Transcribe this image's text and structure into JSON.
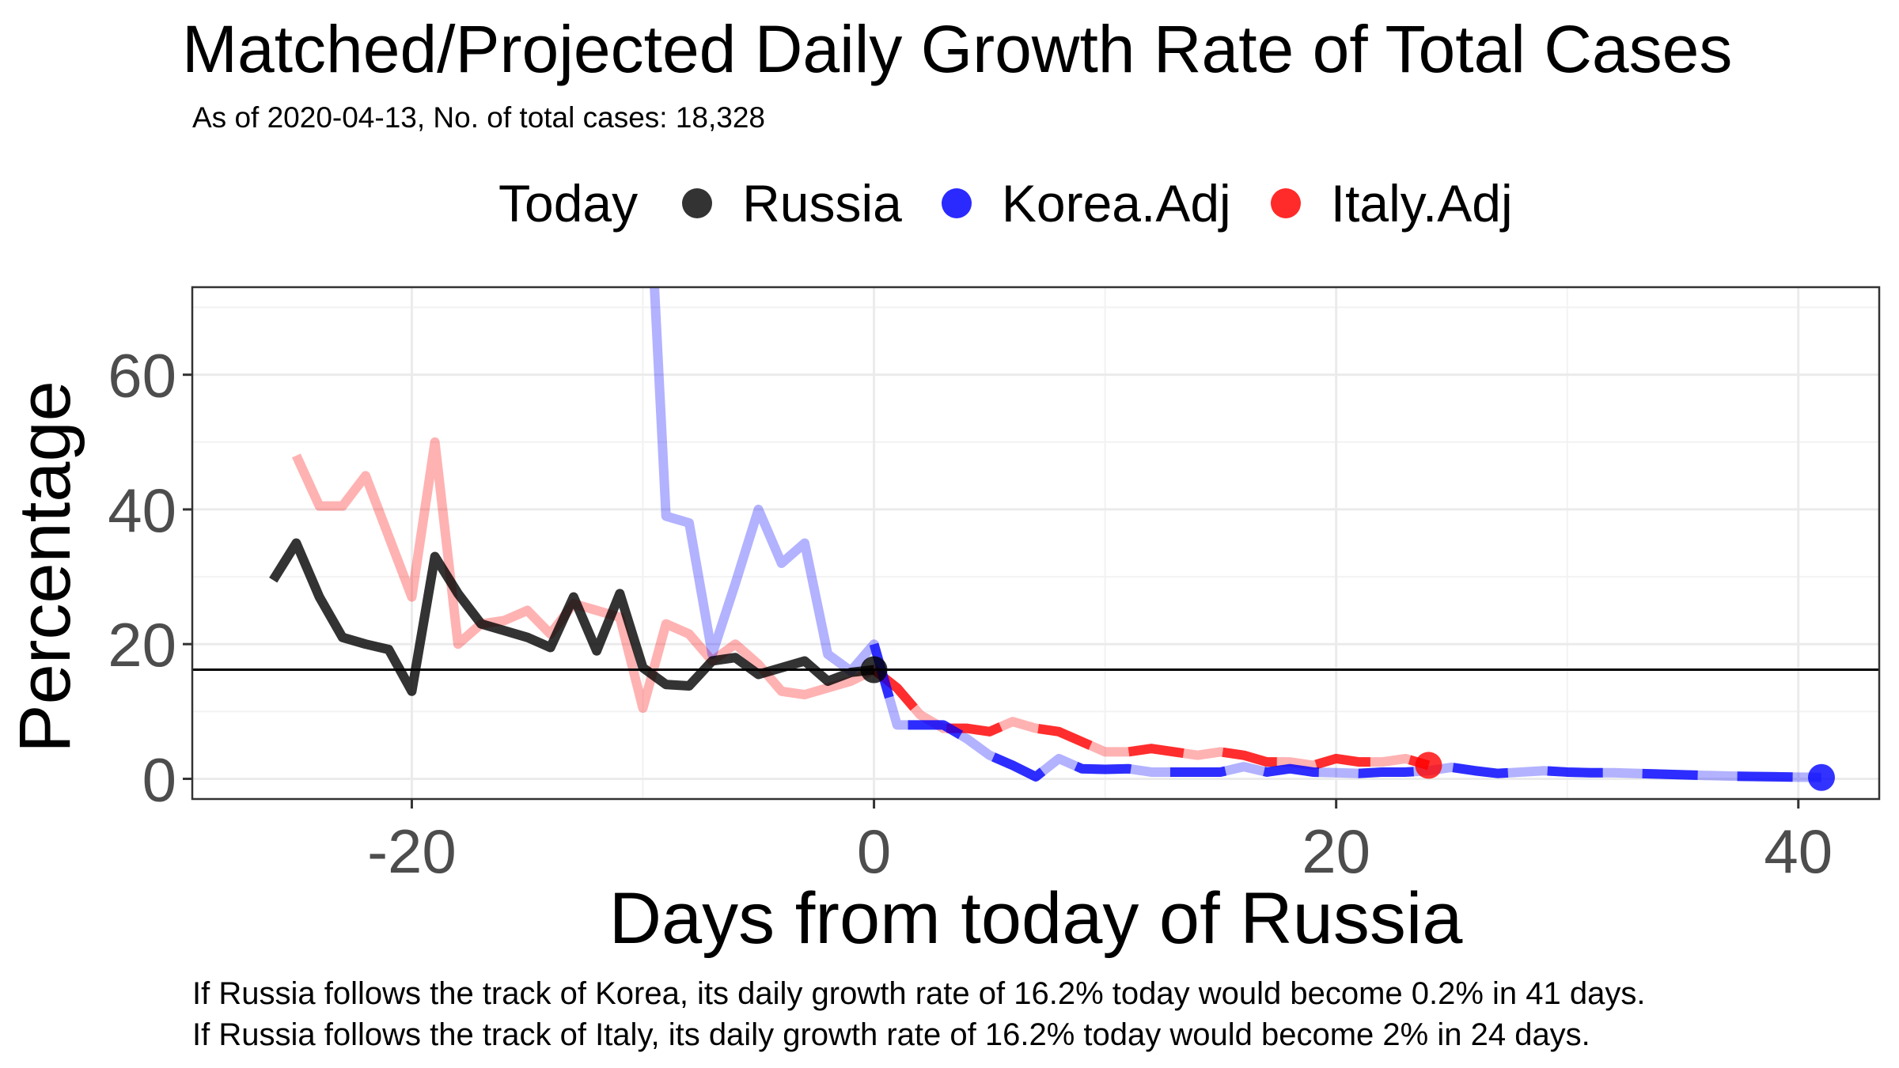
{
  "chart_data": {
    "type": "line",
    "title": "Matched/Projected Daily Growth Rate of Total Cases",
    "subtitle": "As of 2020-04-13, No. of total cases: 18,328",
    "xlabel": "Days from today of Russia",
    "ylabel": "Percentage",
    "xlim": [
      -29.5,
      43.5
    ],
    "ylim": [
      -3,
      73
    ],
    "xticks": [
      -20,
      0,
      20,
      40
    ],
    "yticks": [
      0,
      20,
      40,
      60
    ],
    "legend": {
      "title": "Today",
      "position": "top"
    },
    "grid": true,
    "hline": 16.2,
    "series": [
      {
        "name": "Russia",
        "color": "#000000",
        "x": [
          -26,
          -25,
          -24,
          -23,
          -22,
          -21,
          -20,
          -19,
          -18,
          -17,
          -16,
          -15,
          -14,
          -13,
          -12,
          -11,
          -10,
          -9,
          -8,
          -7,
          -6,
          -5,
          -4,
          -3,
          -2,
          -1,
          0
        ],
        "y": [
          29.5,
          35,
          27,
          21,
          20,
          19.2,
          13,
          33,
          27.5,
          23,
          22,
          21,
          19.5,
          27,
          19,
          27.5,
          16.5,
          14,
          13.8,
          17.5,
          18,
          15.5,
          16.5,
          17.5,
          14.5,
          15.8,
          16.2
        ],
        "today": {
          "x": 0,
          "y": 16.2
        }
      },
      {
        "name": "Korea.Adj",
        "color": "#0000ff",
        "x": [
          -9.5,
          -9,
          -8,
          -7,
          -6,
          -5,
          -4,
          -3,
          -2,
          -1,
          0,
          1,
          2,
          3,
          4,
          5,
          6,
          7,
          8,
          9,
          10,
          11,
          12,
          13,
          14,
          15,
          16,
          17,
          18,
          19,
          20,
          21,
          22,
          23,
          24,
          25,
          26,
          27,
          28,
          29,
          30,
          31,
          32,
          33,
          34,
          35,
          36,
          37,
          38,
          39,
          40,
          41
        ],
        "y": [
          73,
          39,
          38,
          18.5,
          29,
          40,
          32,
          35,
          18.5,
          16,
          20,
          8,
          8,
          8,
          6,
          3.5,
          2,
          0.3,
          3,
          1.5,
          1.4,
          1.5,
          1,
          1,
          1,
          1,
          1.8,
          1,
          1.5,
          1,
          0.9,
          0.8,
          1,
          1,
          1.2,
          1.7,
          1.2,
          0.8,
          1,
          1.2,
          1,
          0.9,
          0.9,
          0.8,
          0.7,
          0.6,
          0.5,
          0.4,
          0.35,
          0.3,
          0.25,
          0.2
        ],
        "today": {
          "x": 41,
          "y": 0.2
        }
      },
      {
        "name": "Italy.Adj",
        "color": "#ff0000",
        "x": [
          -25,
          -24,
          -23,
          -22,
          -21,
          -20,
          -19,
          -18,
          -17,
          -16,
          -15,
          -14,
          -13,
          -12,
          -11,
          -10,
          -9,
          -8,
          -7,
          -6,
          -5,
          -4,
          -3,
          -2,
          -1,
          0,
          1,
          2,
          3,
          4,
          5,
          6,
          7,
          8,
          9,
          10,
          11,
          12,
          13,
          14,
          15,
          16,
          17,
          18,
          19,
          20,
          21,
          22,
          23,
          24
        ],
        "y": [
          48,
          40.5,
          40.5,
          45,
          36,
          27,
          50,
          20,
          23,
          23.5,
          25,
          21.5,
          26,
          25,
          24,
          10.5,
          23,
          21.5,
          17.5,
          20,
          17,
          13,
          12.5,
          13.5,
          14.5,
          16.2,
          13.5,
          9.5,
          7.5,
          7.5,
          7,
          8.5,
          7.5,
          7,
          5.5,
          4,
          4,
          4.5,
          4,
          3.5,
          4,
          3.5,
          2.5,
          2.5,
          2,
          3,
          2.5,
          2.5,
          3,
          2
        ],
        "today": {
          "x": 24,
          "y": 2
        }
      }
    ],
    "captions": [
      "If Russia follows the track of Korea, its daily growth rate of 16.2% today would become 0.2% in 41 days.",
      "If Russia follows the track of Italy, its daily growth rate of 16.2% today would become 2% in 24 days."
    ]
  }
}
